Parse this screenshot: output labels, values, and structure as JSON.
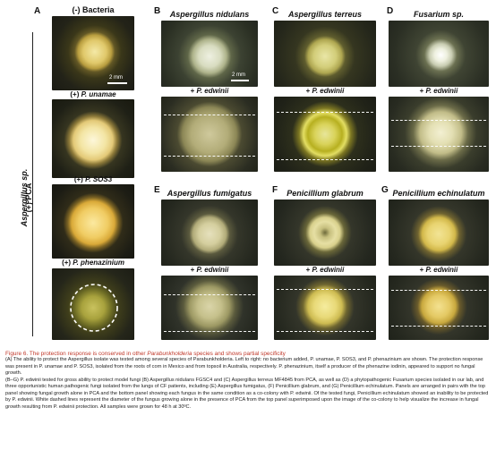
{
  "colors": {
    "caption_title": "#c0392b",
    "dish_dark": "#1d1e16",
    "dashed_line": "#ffffff"
  },
  "side_label": {
    "main": "Aspergillus sp.",
    "sub": "(+) PCA"
  },
  "panels": {
    "A": {
      "letter": "A",
      "rows": [
        {
          "label": "(-) Bacteria",
          "scalebar": "2 mm"
        },
        {
          "label_prefix": "(+) ",
          "label_species": "P. unamae"
        },
        {
          "label_prefix": "(+) ",
          "label_species": "P. SOS3"
        },
        {
          "label_prefix": "(+) ",
          "label_species": "P. phenazinium"
        }
      ]
    },
    "B": {
      "letter": "B",
      "title": "Aspergillus nidulans",
      "scalebar": "2 mm",
      "lower_label_prefix": "+ ",
      "lower_label_species": "P. edwinii"
    },
    "C": {
      "letter": "C",
      "title": "Aspergillus terreus",
      "lower_label_prefix": "+ ",
      "lower_label_species": "P. edwinii"
    },
    "D": {
      "letter": "D",
      "title": "Fusarium sp.",
      "lower_label_prefix": "+ ",
      "lower_label_species": "P. edwinii"
    },
    "E": {
      "letter": "E",
      "title": "Aspergillus fumigatus",
      "lower_label_prefix": "+ ",
      "lower_label_species": "P. edwinii"
    },
    "F": {
      "letter": "F",
      "title": "Penicillium glabrum",
      "lower_label_prefix": "+ ",
      "lower_label_species": "P. edwinii"
    },
    "G": {
      "letter": "G",
      "title": "Penicillium echinulatum",
      "lower_label_prefix": "+ ",
      "lower_label_species": "P. edwinii"
    }
  },
  "caption": {
    "title_prefix": "Figure 6.  The protection response is conserved in other ",
    "title_italic": "Parabunkholderia",
    "title_suffix": " species and shows partial specificity",
    "paragraph_1": "(A) The ability to protect the Aspergillus isolate was tested among several species of Parabunkholderia. Left to right: no bacterium added, P. unamae, P. SOS3, and P. phenazinium are shown. The protection response was present in P. unamae and P. SOS3, isolated from the roots of corn in Mexico and from topsoil in Australia, respectively. P. phenazinium, itself a producer of the phenazine iodinin, appeared to support no fungal growth.",
    "paragraph_2": "(B–G) P. edwinii tested for gross ability to protect model fungi (B) Aspergillus nidulans FGSC4 and (C) Aspergillus terreus MF4845 from PCA, as well as (D) a phytopathogenic Fusarium species isolated in our lab, and three opportunistic human pathogenic fungi isolated from the lungs of CF patients, including (E) Aspergillus fumigatus, (F) Penicillium glabrum, and (G) Penicillium echinulatum. Panels are arranged in pairs with the top panel showing fungal growth alone in PCA and the bottom panel showing each fungus in the same condition as a co-colony with P. edwinii. Of the tested fungi, Penicillium echinulatum showed an inability to be protected by P. edwinii. White dashed lines represent the diameter of the fungus growing alone in the presence of PCA from the top panel superimposed upon the image of the co-colony to help visualize the increase in fungal growth resulting from P. edwinii protection. All samples were grown for 48 h at 30ºC."
  }
}
